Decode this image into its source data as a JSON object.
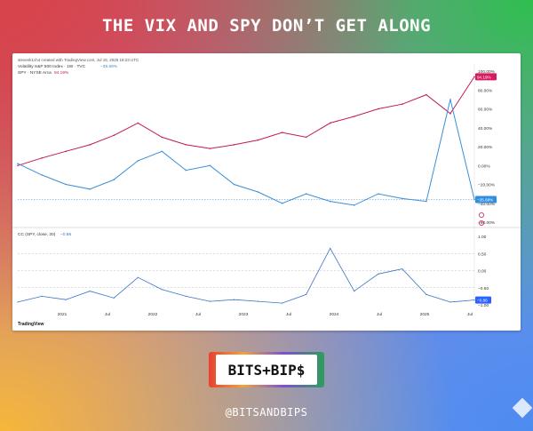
{
  "headline": "THE VIX AND SPY DON’T GET ALONG",
  "handle": "@BITSANDBIPS",
  "brand": "BITS+BIP$",
  "chart_header": "stevenk1ch4 created with TradingView.com, Jul 15, 2025 18:23 UTC",
  "legend": {
    "vix": "Volatility S&P 500 Index · 1W · TVC",
    "vix_value": "−35.68%",
    "spy": "SPY · NYSE Arca",
    "spy_value": "94.19%"
  },
  "lower_label": "CC (SPY, close, 20)",
  "lower_value": "−0.86",
  "tv_brand": "TradingView",
  "colors": {
    "spy": "#c2185b",
    "vix": "#3a8fd6",
    "cc": "#3a73c9",
    "vix_badge": "#2f8ee0",
    "spy_badge": "#d81b60",
    "cc_badge": "#2962ff"
  },
  "icons": [
    "gear-icon",
    "eye-icon"
  ],
  "chart_data": [
    {
      "type": "line",
      "title": "",
      "x": [
        "2020-10",
        "2021-01",
        "2021-04",
        "2021-07",
        "2021-10",
        "2022-01",
        "2022-04",
        "2022-07",
        "2022-10",
        "2023-01",
        "2023-04",
        "2023-07",
        "2023-10",
        "2024-01",
        "2024-04",
        "2024-07",
        "2024-10",
        "2025-01",
        "2025-04",
        "2025-07"
      ],
      "series": [
        {
          "name": "SPY",
          "values": [
            0,
            8,
            15,
            22,
            32,
            45,
            30,
            22,
            18,
            22,
            27,
            35,
            30,
            45,
            52,
            60,
            65,
            75,
            55,
            94
          ]
        },
        {
          "name": "Volatility S&P 500 Index",
          "values": [
            2,
            -10,
            -20,
            -25,
            -15,
            5,
            15,
            -5,
            0,
            -20,
            -28,
            -40,
            -30,
            -38,
            -42,
            -30,
            -35,
            -38,
            70,
            -36
          ]
        }
      ],
      "y_ticks": [
        "100.00%",
        "80.00%",
        "60.00%",
        "40.00%",
        "20.00%",
        "0.00%",
        "−20.00%",
        "−40.00%",
        "−60.00%"
      ],
      "x_ticks": [
        "2021",
        "Jul",
        "2022",
        "Jul",
        "2023",
        "Jul",
        "2024",
        "Jul",
        "2025",
        "Jul"
      ],
      "ylim": [
        -60,
        100
      ]
    },
    {
      "type": "line",
      "title": "",
      "x": [
        "2020-10",
        "2021-01",
        "2021-04",
        "2021-07",
        "2021-10",
        "2022-01",
        "2022-04",
        "2022-07",
        "2022-10",
        "2023-01",
        "2023-04",
        "2023-07",
        "2023-10",
        "2024-01",
        "2024-04",
        "2024-07",
        "2024-10",
        "2025-01",
        "2025-04",
        "2025-07"
      ],
      "series": [
        {
          "name": "CC (SPY, close, 20)",
          "values": [
            -0.92,
            -0.75,
            -0.85,
            -0.6,
            -0.8,
            -0.2,
            -0.55,
            -0.75,
            -0.9,
            -0.85,
            -0.9,
            -0.95,
            -0.7,
            0.65,
            -0.6,
            -0.1,
            0.05,
            -0.7,
            -0.92,
            -0.86
          ]
        }
      ],
      "y_ticks": [
        "1.00",
        "0.50",
        "0.00",
        "−0.50",
        "−1.00"
      ],
      "ylim": [
        -1,
        1
      ]
    }
  ]
}
